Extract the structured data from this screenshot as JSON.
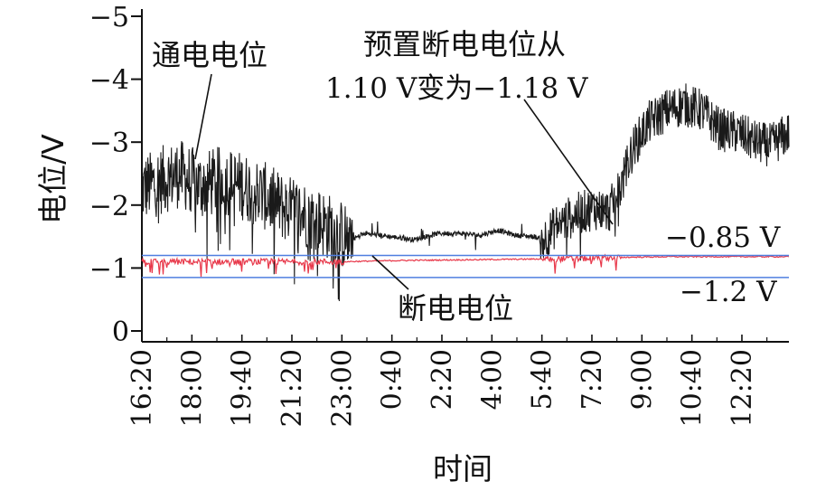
{
  "chart_data": {
    "type": "line",
    "xlabel": "时间",
    "ylabel": "电位/V",
    "y_tick_labels": [
      "−5",
      "−4",
      "−3",
      "−2",
      "−1",
      "0"
    ],
    "y_tick_values": [
      5,
      4,
      3,
      2,
      1,
      0
    ],
    "ylim": [
      0,
      5
    ],
    "x_tick_labels": [
      "16:20",
      "18:00",
      "19:40",
      "21:20",
      "23:00",
      "0:40",
      "2:20",
      "4:00",
      "5:40",
      "7:20",
      "9:00",
      "10:40",
      "12:20"
    ],
    "x_tick_values_hours": [
      16.333,
      18.0,
      19.667,
      21.333,
      23.0,
      24.667,
      26.333,
      28.0,
      29.667,
      31.333,
      33.0,
      34.667,
      36.333
    ],
    "xlim_hours": [
      16.333,
      37.9
    ],
    "grid": false,
    "series": [
      {
        "name": "通电电位",
        "color": "#1a1a1a",
        "style": "noisy",
        "x": [
          16.33,
          17.0,
          17.6,
          18.3,
          19.0,
          19.7,
          20.4,
          21.1,
          21.8,
          22.4,
          22.9,
          23.3,
          23.8,
          24.6,
          25.4,
          26.2,
          27.0,
          27.6,
          28.2,
          28.8,
          29.4,
          29.7,
          30.2,
          30.8,
          31.4,
          31.9,
          32.3,
          32.7,
          33.2,
          33.8,
          34.4,
          35.0,
          35.6,
          36.2,
          36.8,
          37.3,
          37.9
        ],
        "y": [
          2.25,
          2.4,
          2.5,
          2.3,
          2.4,
          2.3,
          2.15,
          1.95,
          1.85,
          1.7,
          1.55,
          1.45,
          1.55,
          1.5,
          1.45,
          1.55,
          1.55,
          1.52,
          1.6,
          1.52,
          1.5,
          1.45,
          1.7,
          1.85,
          1.95,
          1.9,
          2.3,
          2.9,
          3.3,
          3.5,
          3.6,
          3.5,
          3.2,
          3.15,
          3.0,
          2.95,
          3.15
        ]
      },
      {
        "name": "断电电位",
        "color": "#e8384a",
        "style": "noisy-small",
        "x": [
          16.33,
          18.0,
          20.0,
          22.0,
          23.0,
          25.0,
          27.0,
          29.0,
          31.0,
          32.3,
          34.0,
          36.0,
          37.9
        ],
        "y": [
          1.1,
          1.1,
          1.1,
          1.1,
          1.1,
          1.12,
          1.13,
          1.14,
          1.15,
          1.17,
          1.18,
          1.18,
          1.18
        ]
      },
      {
        "name": "−0.85 V",
        "color": "#4f7fe0",
        "style": "flat",
        "x": [
          16.33,
          37.9
        ],
        "y": [
          0.85,
          0.85
        ]
      },
      {
        "name": "−1.2 V",
        "color": "#4f7fe0",
        "style": "flat",
        "x": [
          16.33,
          37.9
        ],
        "y": [
          1.2,
          1.2
        ]
      }
    ],
    "annotations": {
      "on_potential": "通电电位",
      "off_potential": "断电电位",
      "note_line1": "预置断电电位从",
      "note_line2": "1.10 V变为−1.18 V",
      "label_085": "−0.85 V",
      "label_12": "−1.2 V"
    }
  }
}
